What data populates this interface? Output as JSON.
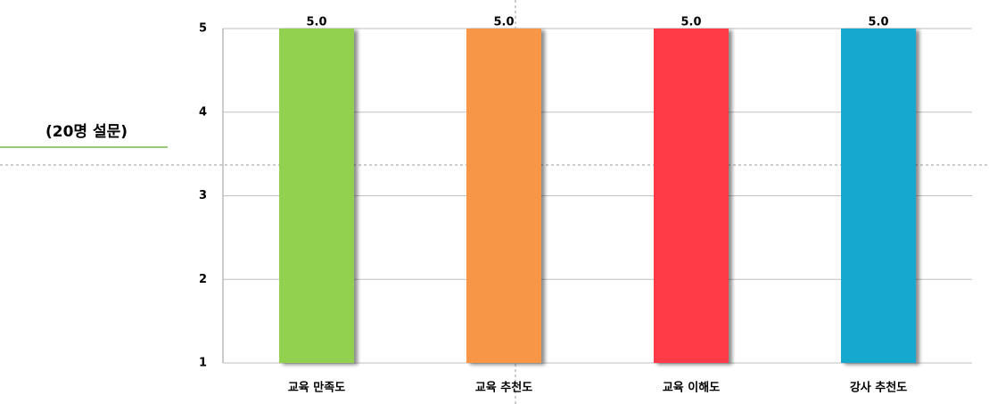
{
  "chart_data": {
    "type": "bar",
    "annotation": "(20명 설문)",
    "categories": [
      "교육 만족도",
      "교육 추천도",
      "교육 이해도",
      "강사 추천도"
    ],
    "values": [
      5,
      5,
      5,
      5
    ],
    "value_labels": [
      "5.0",
      "5.0",
      "5.0",
      "5.0"
    ],
    "colors": [
      "#92d050",
      "#f79646",
      "#ff3b47",
      "#17a9cf"
    ],
    "ylim": [
      1,
      5
    ],
    "yticks": [
      1,
      2,
      3,
      4,
      5
    ],
    "grid": true
  }
}
